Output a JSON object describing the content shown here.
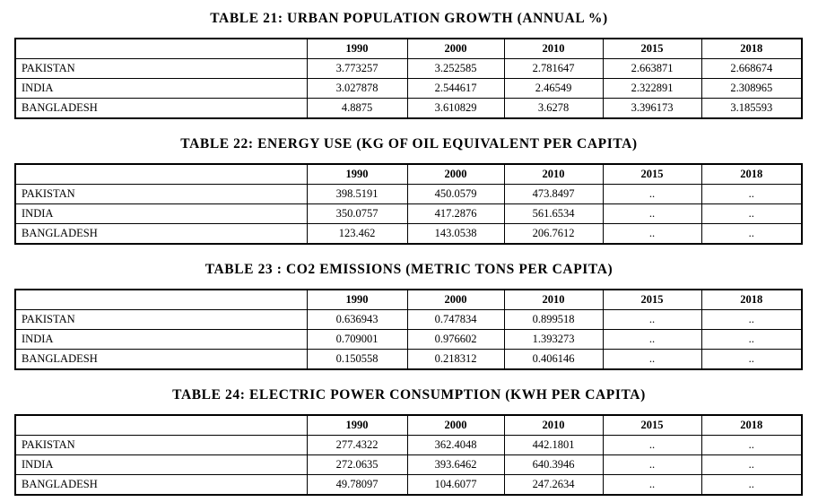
{
  "years": [
    "1990",
    "2000",
    "2010",
    "2015",
    "2018"
  ],
  "tables": [
    {
      "title": "TABLE 21: URBAN POPULATION GROWTH (ANNUAL %)",
      "rows": [
        {
          "country": "PAKISTAN",
          "values": [
            "3.773257",
            "3.252585",
            "2.781647",
            "2.663871",
            "2.668674"
          ]
        },
        {
          "country": "INDIA",
          "values": [
            "3.027878",
            "2.544617",
            "2.46549",
            "2.322891",
            "2.308965"
          ]
        },
        {
          "country": "BANGLADESH",
          "values": [
            "4.8875",
            "3.610829",
            "3.6278",
            "3.396173",
            "3.185593"
          ]
        }
      ]
    },
    {
      "title": "TABLE 22: ENERGY USE (KG OF OIL EQUIVALENT PER CAPITA)",
      "rows": [
        {
          "country": "PAKISTAN",
          "values": [
            "398.5191",
            "450.0579",
            "473.8497",
            "..",
            ".."
          ]
        },
        {
          "country": "INDIA",
          "values": [
            "350.0757",
            "417.2876",
            "561.6534",
            "..",
            ".."
          ]
        },
        {
          "country": "BANGLADESH",
          "values": [
            "123.462",
            "143.0538",
            "206.7612",
            "..",
            ".."
          ]
        }
      ]
    },
    {
      "title": "TABLE 23 : CO2 EMISSIONS (METRIC TONS PER CAPITA)",
      "rows": [
        {
          "country": "PAKISTAN",
          "values": [
            "0.636943",
            "0.747834",
            "0.899518",
            "..",
            ".."
          ]
        },
        {
          "country": "INDIA",
          "values": [
            "0.709001",
            "0.976602",
            "1.393273",
            "..",
            ".."
          ]
        },
        {
          "country": "BANGLADESH",
          "values": [
            "0.150558",
            "0.218312",
            "0.406146",
            "..",
            ".."
          ]
        }
      ]
    },
    {
      "title": "TABLE 24: ELECTRIC POWER CONSUMPTION (KWH PER CAPITA)",
      "rows": [
        {
          "country": "PAKISTAN",
          "values": [
            "277.4322",
            "362.4048",
            "442.1801",
            "..",
            ".."
          ]
        },
        {
          "country": "INDIA",
          "values": [
            "272.0635",
            "393.6462",
            "640.3946",
            "..",
            ".."
          ]
        },
        {
          "country": "BANGLADESH",
          "values": [
            "49.78097",
            "104.6077",
            "247.2634",
            "..",
            ".."
          ]
        }
      ]
    }
  ]
}
